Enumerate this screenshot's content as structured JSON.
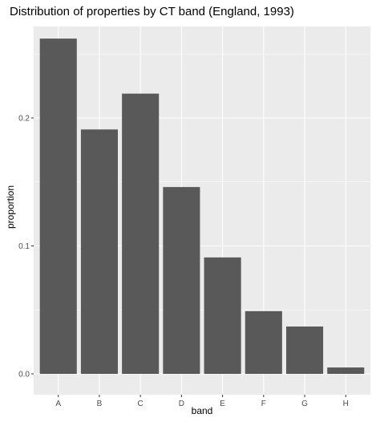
{
  "chart_data": {
    "type": "bar",
    "title": "Distribution of properties by CT band (England, 1993)",
    "xlabel": "band",
    "ylabel": "proportion",
    "categories": [
      "A",
      "B",
      "C",
      "D",
      "E",
      "F",
      "G",
      "H"
    ],
    "values": [
      0.262,
      0.191,
      0.219,
      0.146,
      0.091,
      0.049,
      0.037,
      0.005
    ],
    "ylim": [
      0,
      0.27
    ],
    "yticks": [
      0.0,
      0.1,
      0.2
    ],
    "ytick_labels": [
      "0.0",
      "0.1",
      "0.2"
    ],
    "grid": true,
    "colors": {
      "bar": "#595959",
      "panel": "#ebebeb",
      "grid": "#ffffff"
    }
  }
}
